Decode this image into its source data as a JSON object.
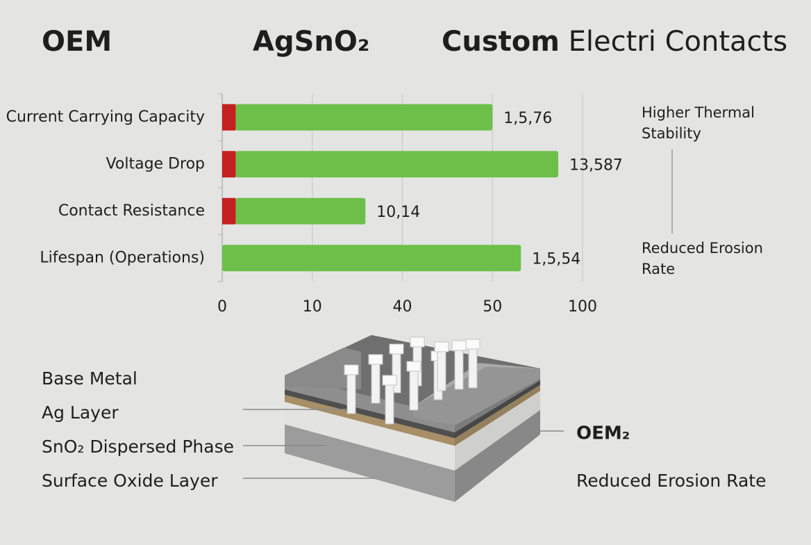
{
  "header": {
    "left": "OEM",
    "center": "AgSnO₂",
    "right_bold": "Custom",
    "right_rest": " Electri Contacts"
  },
  "chart_data": {
    "type": "hbar",
    "categories": [
      "Current Carrying Capacity",
      "Voltage Drop",
      "Contact Resistance",
      "Lifespan (Operations)"
    ],
    "series": [
      {
        "color": "#c42020",
        "values": [
          1.5,
          1.5,
          1.5,
          0
        ]
      },
      {
        "color": "#6cc04a",
        "values": [
          48.5,
          85,
          26.2,
          65.8
        ]
      }
    ],
    "bar_texts": [
      "1,5,76",
      "13,587",
      "10,14",
      "1,5,54"
    ],
    "xlim": [
      0,
      100
    ],
    "xticks": [
      0,
      10,
      40,
      50,
      100
    ],
    "grid": true,
    "annotations": {
      "top": [
        "Higher Thermal",
        "Stability"
      ],
      "bottom": [
        "Reduced Erosion",
        "Rate"
      ]
    }
  },
  "diagram": {
    "left_labels": [
      "Base Metal",
      "Ag Layer",
      "SnO₂ Dispersed Phase",
      "Surface Oxide Layer"
    ],
    "right_labels": [
      "OEM₂",
      "Reduced Erosion Rate"
    ]
  }
}
